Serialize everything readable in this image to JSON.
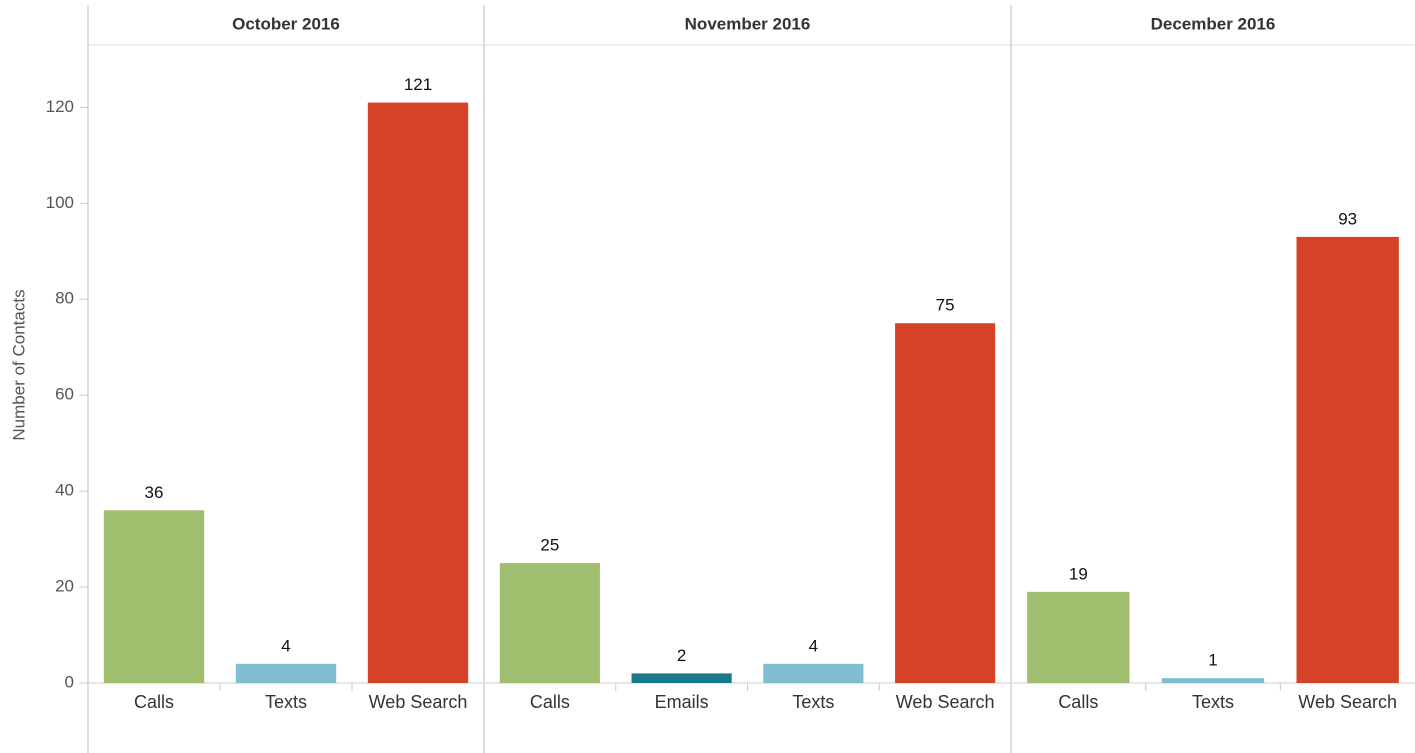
{
  "chart_data": {
    "type": "bar",
    "ylabel": "Number of Contacts",
    "ylim": [
      0,
      133
    ],
    "yticks": [
      0,
      20,
      40,
      60,
      80,
      100,
      120
    ],
    "grid": false,
    "panels": [
      {
        "title": "October 2016",
        "categories": [
          "Calls",
          "Texts",
          "Web Search"
        ],
        "values": [
          36,
          4,
          121
        ],
        "colors": [
          "#a0bf6e",
          "#7fbdd0",
          "#d44228"
        ]
      },
      {
        "title": "November 2016",
        "categories": [
          "Calls",
          "Emails",
          "Texts",
          "Web Search"
        ],
        "values": [
          25,
          2,
          4,
          75
        ],
        "colors": [
          "#a0bf6e",
          "#1a7a8c",
          "#7fbdd0",
          "#d44228"
        ]
      },
      {
        "title": "December 2016",
        "categories": [
          "Calls",
          "Texts",
          "Web Search"
        ],
        "values": [
          19,
          1,
          93
        ],
        "colors": [
          "#a0bf6e",
          "#7fbdd0",
          "#d44228"
        ]
      }
    ]
  }
}
